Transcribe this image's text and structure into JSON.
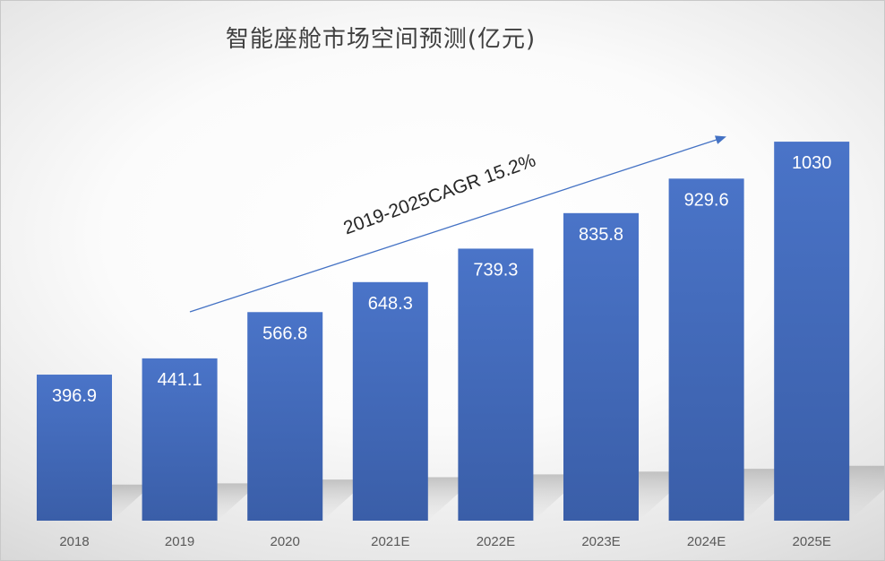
{
  "chart_data": {
    "type": "bar",
    "title": "智能座舱市场空间预测(亿元)",
    "categories": [
      "2018",
      "2019",
      "2020",
      "2021E",
      "2022E",
      "2023E",
      "2024E",
      "2025E"
    ],
    "values": [
      396.9,
      441.1,
      566.8,
      648.3,
      739.3,
      835.8,
      929.6,
      1030
    ],
    "value_labels": [
      "396.9",
      "441.1",
      "566.8",
      "648.3",
      "739.3",
      "835.8",
      "929.6",
      "1030"
    ],
    "annotation": "2019-2025CAGR 15.2%",
    "ylim": [
      0,
      1200
    ],
    "grid": false,
    "legend": "none",
    "bar_color_top": "#4a74c8",
    "bar_color_bottom": "#3a5ea8",
    "arrow_color": "#4472c4"
  }
}
